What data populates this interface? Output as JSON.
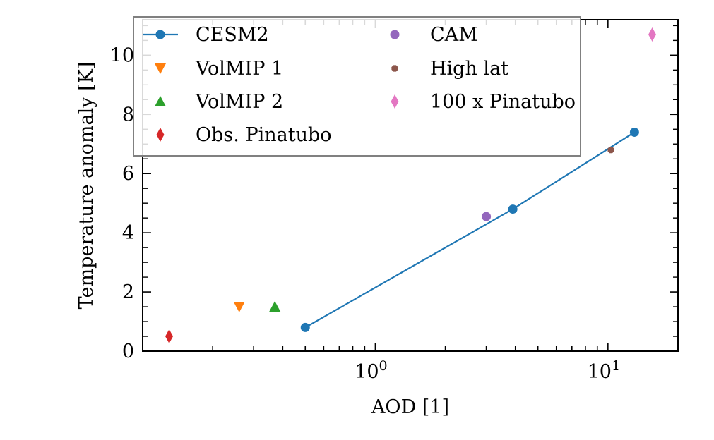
{
  "chart_data": {
    "type": "scatter",
    "title": "",
    "xlabel": "AOD [1]",
    "ylabel": "Temperature anomaly [K]",
    "xscale": "log",
    "xlim": [
      0.1,
      20
    ],
    "ylim": [
      0,
      11.2
    ],
    "x_ticks": [
      {
        "value": 1,
        "base": "10",
        "exp": "0"
      },
      {
        "value": 10,
        "base": "10",
        "exp": "1"
      }
    ],
    "y_ticks": [
      0,
      2,
      4,
      6,
      8,
      10
    ],
    "grid": false,
    "legend": {
      "position": "top-left",
      "columns": 2
    },
    "series": [
      {
        "name": "CESM2",
        "marker": "circle-line",
        "color": "#1f77b4",
        "x": [
          0.5,
          3.9,
          13.0
        ],
        "y": [
          0.8,
          4.8,
          7.4
        ]
      },
      {
        "name": "VolMIP 1",
        "marker": "triangle-down",
        "color": "#ff7f0e",
        "x": [
          0.26
        ],
        "y": [
          1.5
        ]
      },
      {
        "name": "VolMIP 2",
        "marker": "triangle-up",
        "color": "#2ca02c",
        "x": [
          0.37
        ],
        "y": [
          1.5
        ]
      },
      {
        "name": "Obs. Pinatubo",
        "marker": "diamond",
        "color": "#d62728",
        "x": [
          0.13
        ],
        "y": [
          0.5
        ]
      },
      {
        "name": "CAM",
        "marker": "circle",
        "color": "#9467bd",
        "x": [
          3.0
        ],
        "y": [
          4.55
        ]
      },
      {
        "name": "High lat",
        "marker": "octagon",
        "color": "#8c564b",
        "x": [
          10.3
        ],
        "y": [
          6.8
        ]
      },
      {
        "name": "100 x Pinatubo",
        "marker": "diamond",
        "color": "#e377c2",
        "x": [
          15.5
        ],
        "y": [
          10.7
        ]
      }
    ]
  }
}
